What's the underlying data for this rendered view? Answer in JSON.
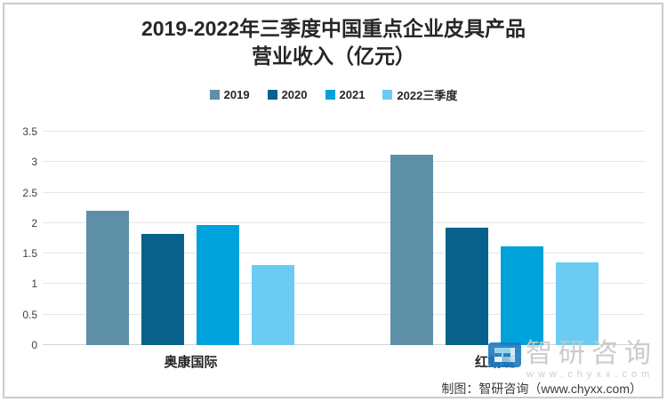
{
  "title": {
    "line1": "2019-2022年三季度中国重点企业皮具产品",
    "line2": "营业收入（亿元）"
  },
  "chart_data": {
    "type": "bar",
    "title": "2019-2022年三季度中国重点企业皮具产品营业收入（亿元）",
    "categories": [
      "奥康国际",
      "红蜻蜓"
    ],
    "series": [
      {
        "name": "2019",
        "color": "#5d8fa7",
        "values": [
          2.2,
          3.12
        ]
      },
      {
        "name": "2020",
        "color": "#07618a",
        "values": [
          1.83,
          1.93
        ]
      },
      {
        "name": "2021",
        "color": "#00a2dc",
        "values": [
          1.97,
          1.62
        ]
      },
      {
        "name": "2022三季度",
        "color": "#6bcbf2",
        "values": [
          1.32,
          1.35
        ]
      }
    ],
    "xlabel": "",
    "ylabel": "",
    "ylim": [
      0,
      3.5
    ],
    "yticks": [
      0,
      0.5,
      1,
      1.5,
      2,
      2.5,
      3,
      3.5
    ],
    "grid": true,
    "legend_position": "top",
    "unit": "亿元"
  },
  "watermark": {
    "brand": "智研咨询",
    "url": "www.chyxx.com",
    "logo": "zhiyan-logo"
  },
  "caption": "制图：智研咨询（www.chyxx.com）",
  "colors": {
    "grid": "#e6e6e6",
    "axis": "#d2d2d2",
    "title_text": "#262626",
    "tick_text": "#3f3f3f",
    "watermark_text": "#c7c7c7",
    "frame_border": "#cccccc"
  }
}
